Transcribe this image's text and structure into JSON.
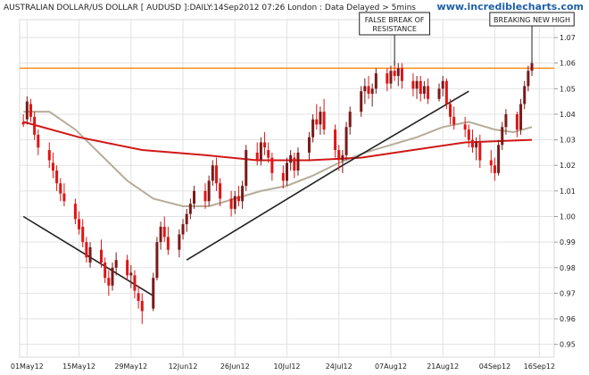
{
  "header": {
    "title": "AUSTRALIAN DOLLAR/US DOLLAR [ AUDUSD ]:DAILY:14Sep2012 07:26 London : Data Delayed > 5mins",
    "brand": "www.incrediblecharts.com"
  },
  "chart_data": {
    "type": "candlestick",
    "x_tick_labels": [
      "01May12",
      "15May12",
      "29May12",
      "12Jun12",
      "26Jun12",
      "10Jul12",
      "24Jul12",
      "07Aug12",
      "21Aug12",
      "04Sep12",
      "16Sep12"
    ],
    "x_tick_dates": [
      "2012-05-01",
      "2012-05-15",
      "2012-05-29",
      "2012-06-12",
      "2012-06-26",
      "2012-07-10",
      "2012-07-24",
      "2012-08-07",
      "2012-08-21",
      "2012-09-04",
      "2012-09-16"
    ],
    "y_ticks": [
      0.95,
      0.96,
      0.97,
      0.98,
      0.99,
      1.0,
      1.01,
      1.02,
      1.03,
      1.04,
      1.05,
      1.06,
      1.07
    ],
    "ylim": [
      0.945,
      1.077
    ],
    "xlim": [
      "2012-04-29",
      "2012-09-20"
    ],
    "resistance_level": 1.058,
    "colors": {
      "up": "#7a1a1a",
      "down": "#e01515",
      "resistance": "#ff8c1a",
      "ma_long": "#d01818",
      "ma_mid": "#b5ad98",
      "trendline": "#222222"
    },
    "annotations": [
      {
        "text": [
          "FALSE BREAK OF",
          "RESISTANCE"
        ],
        "date": "2012-08-08",
        "value": 1.059
      },
      {
        "text": [
          "BREAKING NEW HIGH"
        ],
        "date": "2012-09-14",
        "value": 1.06
      }
    ],
    "trendlines": [
      {
        "points": [
          [
            "2012-04-30",
            1.0
          ],
          [
            "2012-06-04",
            0.969
          ]
        ]
      },
      {
        "points": [
          [
            "2012-06-13",
            0.983
          ],
          [
            "2012-07-25",
            1.02
          ],
          [
            "2012-08-28",
            1.049
          ]
        ]
      }
    ],
    "ma_long": [
      [
        "2012-04-30",
        1.037
      ],
      [
        "2012-05-15",
        1.031
      ],
      [
        "2012-06-01",
        1.026
      ],
      [
        "2012-06-18",
        1.024
      ],
      [
        "2012-07-02",
        1.022
      ],
      [
        "2012-07-16",
        1.022
      ],
      [
        "2012-07-30",
        1.023
      ],
      [
        "2012-08-13",
        1.026
      ],
      [
        "2012-08-27",
        1.029
      ],
      [
        "2012-09-14",
        1.03
      ]
    ],
    "ma_mid": [
      [
        "2012-04-30",
        1.041
      ],
      [
        "2012-05-07",
        1.041
      ],
      [
        "2012-05-14",
        1.034
      ],
      [
        "2012-05-21",
        1.024
      ],
      [
        "2012-05-28",
        1.014
      ],
      [
        "2012-06-04",
        1.007
      ],
      [
        "2012-06-12",
        1.004
      ],
      [
        "2012-06-19",
        1.004
      ],
      [
        "2012-06-26",
        1.007
      ],
      [
        "2012-07-03",
        1.01
      ],
      [
        "2012-07-10",
        1.012
      ],
      [
        "2012-07-17",
        1.016
      ],
      [
        "2012-07-24",
        1.021
      ],
      [
        "2012-07-31",
        1.025
      ],
      [
        "2012-08-07",
        1.028
      ],
      [
        "2012-08-14",
        1.031
      ],
      [
        "2012-08-21",
        1.035
      ],
      [
        "2012-08-28",
        1.037
      ],
      [
        "2012-09-04",
        1.034
      ],
      [
        "2012-09-09",
        1.033
      ],
      [
        "2012-09-14",
        1.035
      ]
    ],
    "candles": [
      {
        "date": "2012-04-30",
        "open": 1.037,
        "high": 1.04,
        "low": 1.035,
        "close": 1.036
      },
      {
        "date": "2012-05-01",
        "open": 1.038,
        "high": 1.047,
        "low": 1.036,
        "close": 1.045
      },
      {
        "date": "2012-05-02",
        "open": 1.044,
        "high": 1.046,
        "low": 1.037,
        "close": 1.039
      },
      {
        "date": "2012-05-03",
        "open": 1.039,
        "high": 1.041,
        "low": 1.03,
        "close": 1.032
      },
      {
        "date": "2012-05-04",
        "open": 1.032,
        "high": 1.034,
        "low": 1.024,
        "close": 1.027
      },
      {
        "date": "2012-05-07",
        "open": 1.026,
        "high": 1.029,
        "low": 1.019,
        "close": 1.022
      },
      {
        "date": "2012-05-08",
        "open": 1.021,
        "high": 1.025,
        "low": 1.015,
        "close": 1.018
      },
      {
        "date": "2012-05-09",
        "open": 1.018,
        "high": 1.02,
        "low": 1.01,
        "close": 1.013
      },
      {
        "date": "2012-05-10",
        "open": 1.013,
        "high": 1.015,
        "low": 1.006,
        "close": 1.009
      },
      {
        "date": "2012-05-11",
        "open": 1.009,
        "high": 1.013,
        "low": 1.004,
        "close": 1.006
      },
      {
        "date": "2012-05-14",
        "open": 1.005,
        "high": 1.007,
        "low": 0.997,
        "close": 0.999
      },
      {
        "date": "2012-05-15",
        "open": 0.999,
        "high": 1.002,
        "low": 0.993,
        "close": 0.995
      },
      {
        "date": "2012-05-16",
        "open": 0.996,
        "high": 0.999,
        "low": 0.988,
        "close": 0.99
      },
      {
        "date": "2012-05-17",
        "open": 0.99,
        "high": 0.992,
        "low": 0.982,
        "close": 0.984
      },
      {
        "date": "2012-05-18",
        "open": 0.982,
        "high": 0.99,
        "low": 0.98,
        "close": 0.988
      },
      {
        "date": "2012-05-21",
        "open": 0.987,
        "high": 0.991,
        "low": 0.98,
        "close": 0.982
      },
      {
        "date": "2012-05-22",
        "open": 0.982,
        "high": 0.984,
        "low": 0.974,
        "close": 0.976
      },
      {
        "date": "2012-05-23",
        "open": 0.976,
        "high": 0.979,
        "low": 0.969,
        "close": 0.973
      },
      {
        "date": "2012-05-24",
        "open": 0.973,
        "high": 0.982,
        "low": 0.971,
        "close": 0.98
      },
      {
        "date": "2012-05-25",
        "open": 0.98,
        "high": 0.986,
        "low": 0.977,
        "close": 0.983
      },
      {
        "date": "2012-05-28",
        "open": 0.983,
        "high": 0.985,
        "low": 0.975,
        "close": 0.977
      },
      {
        "date": "2012-05-29",
        "open": 0.977,
        "high": 0.981,
        "low": 0.972,
        "close": 0.978
      },
      {
        "date": "2012-05-30",
        "open": 0.977,
        "high": 0.979,
        "low": 0.968,
        "close": 0.971
      },
      {
        "date": "2012-05-31",
        "open": 0.97,
        "high": 0.973,
        "low": 0.964,
        "close": 0.967
      },
      {
        "date": "2012-06-01",
        "open": 0.967,
        "high": 0.97,
        "low": 0.958,
        "close": 0.963
      },
      {
        "date": "2012-06-04",
        "open": 0.964,
        "high": 0.978,
        "low": 0.963,
        "close": 0.976
      },
      {
        "date": "2012-06-05",
        "open": 0.976,
        "high": 0.992,
        "low": 0.975,
        "close": 0.99
      },
      {
        "date": "2012-06-06",
        "open": 0.99,
        "high": 0.998,
        "low": 0.987,
        "close": 0.996
      },
      {
        "date": "2012-06-07",
        "open": 0.996,
        "high": 1.0,
        "low": 0.99,
        "close": 0.992
      },
      {
        "date": "2012-06-08",
        "open": 0.992,
        "high": 0.996,
        "low": 0.985,
        "close": 0.987
      },
      {
        "date": "2012-06-11",
        "open": 0.987,
        "high": 0.995,
        "low": 0.984,
        "close": 0.993
      },
      {
        "date": "2012-06-12",
        "open": 0.993,
        "high": 0.999,
        "low": 0.991,
        "close": 0.997
      },
      {
        "date": "2012-06-13",
        "open": 0.997,
        "high": 1.003,
        "low": 0.994,
        "close": 1.001
      },
      {
        "date": "2012-06-14",
        "open": 1.001,
        "high": 1.007,
        "low": 0.999,
        "close": 1.005
      },
      {
        "date": "2012-06-15",
        "open": 1.005,
        "high": 1.012,
        "low": 1.003,
        "close": 1.01
      },
      {
        "date": "2012-06-18",
        "open": 1.01,
        "high": 1.013,
        "low": 1.003,
        "close": 1.006
      },
      {
        "date": "2012-06-19",
        "open": 1.006,
        "high": 1.016,
        "low": 1.004,
        "close": 1.014
      },
      {
        "date": "2012-06-20",
        "open": 1.014,
        "high": 1.022,
        "low": 1.012,
        "close": 1.02
      },
      {
        "date": "2012-06-21",
        "open": 1.02,
        "high": 1.023,
        "low": 1.01,
        "close": 1.013
      },
      {
        "date": "2012-06-22",
        "open": 1.013,
        "high": 1.015,
        "low": 1.004,
        "close": 1.007
      },
      {
        "date": "2012-06-25",
        "open": 1.007,
        "high": 1.01,
        "low": 1.0,
        "close": 1.003
      },
      {
        "date": "2012-06-26",
        "open": 1.003,
        "high": 1.01,
        "low": 1.001,
        "close": 1.008
      },
      {
        "date": "2012-06-27",
        "open": 1.008,
        "high": 1.012,
        "low": 1.004,
        "close": 1.006
      },
      {
        "date": "2012-06-28",
        "open": 1.006,
        "high": 1.014,
        "low": 1.003,
        "close": 1.012
      },
      {
        "date": "2012-06-29",
        "open": 1.012,
        "high": 1.028,
        "low": 1.01,
        "close": 1.026
      },
      {
        "date": "2012-07-02",
        "open": 1.025,
        "high": 1.029,
        "low": 1.02,
        "close": 1.022
      },
      {
        "date": "2012-07-03",
        "open": 1.022,
        "high": 1.031,
        "low": 1.02,
        "close": 1.029
      },
      {
        "date": "2012-07-04",
        "open": 1.029,
        "high": 1.033,
        "low": 1.024,
        "close": 1.027
      },
      {
        "date": "2012-07-05",
        "open": 1.026,
        "high": 1.029,
        "low": 1.021,
        "close": 1.023
      },
      {
        "date": "2012-07-06",
        "open": 1.023,
        "high": 1.025,
        "low": 1.014,
        "close": 1.017
      },
      {
        "date": "2012-07-09",
        "open": 1.017,
        "high": 1.02,
        "low": 1.011,
        "close": 1.014
      },
      {
        "date": "2012-07-10",
        "open": 1.014,
        "high": 1.023,
        "low": 1.012,
        "close": 1.021
      },
      {
        "date": "2012-07-11",
        "open": 1.021,
        "high": 1.026,
        "low": 1.018,
        "close": 1.024
      },
      {
        "date": "2012-07-12",
        "open": 1.023,
        "high": 1.025,
        "low": 1.015,
        "close": 1.018
      },
      {
        "date": "2012-07-13",
        "open": 1.018,
        "high": 1.027,
        "low": 1.016,
        "close": 1.025
      },
      {
        "date": "2012-07-16",
        "open": 1.025,
        "high": 1.033,
        "low": 1.022,
        "close": 1.031
      },
      {
        "date": "2012-07-17",
        "open": 1.031,
        "high": 1.04,
        "low": 1.029,
        "close": 1.038
      },
      {
        "date": "2012-07-18",
        "open": 1.038,
        "high": 1.044,
        "low": 1.034,
        "close": 1.036
      },
      {
        "date": "2012-07-19",
        "open": 1.036,
        "high": 1.043,
        "low": 1.032,
        "close": 1.041
      },
      {
        "date": "2012-07-20",
        "open": 1.041,
        "high": 1.046,
        "low": 1.032,
        "close": 1.034
      },
      {
        "date": "2012-07-23",
        "open": 1.034,
        "high": 1.036,
        "low": 1.023,
        "close": 1.026
      },
      {
        "date": "2012-07-24",
        "open": 1.026,
        "high": 1.028,
        "low": 1.018,
        "close": 1.022
      },
      {
        "date": "2012-07-25",
        "open": 1.022,
        "high": 1.026,
        "low": 1.017,
        "close": 1.024
      },
      {
        "date": "2012-07-26",
        "open": 1.024,
        "high": 1.037,
        "low": 1.022,
        "close": 1.035
      },
      {
        "date": "2012-07-27",
        "open": 1.035,
        "high": 1.043,
        "low": 1.032,
        "close": 1.041
      },
      {
        "date": "2012-07-30",
        "open": 1.041,
        "high": 1.051,
        "low": 1.039,
        "close": 1.049
      },
      {
        "date": "2012-07-31",
        "open": 1.049,
        "high": 1.054,
        "low": 1.044,
        "close": 1.051
      },
      {
        "date": "2012-08-01",
        "open": 1.051,
        "high": 1.055,
        "low": 1.046,
        "close": 1.048
      },
      {
        "date": "2012-08-02",
        "open": 1.048,
        "high": 1.052,
        "low": 1.043,
        "close": 1.05
      },
      {
        "date": "2012-08-03",
        "open": 1.05,
        "high": 1.058,
        "low": 1.048,
        "close": 1.056
      },
      {
        "date": "2012-08-06",
        "open": 1.056,
        "high": 1.058,
        "low": 1.049,
        "close": 1.052
      },
      {
        "date": "2012-08-07",
        "open": 1.052,
        "high": 1.059,
        "low": 1.05,
        "close": 1.057
      },
      {
        "date": "2012-08-08",
        "open": 1.057,
        "high": 1.061,
        "low": 1.053,
        "close": 1.055
      },
      {
        "date": "2012-08-09",
        "open": 1.055,
        "high": 1.06,
        "low": 1.051,
        "close": 1.058
      },
      {
        "date": "2012-08-10",
        "open": 1.058,
        "high": 1.06,
        "low": 1.05,
        "close": 1.053
      },
      {
        "date": "2012-08-13",
        "open": 1.053,
        "high": 1.056,
        "low": 1.047,
        "close": 1.05
      },
      {
        "date": "2012-08-14",
        "open": 1.05,
        "high": 1.055,
        "low": 1.046,
        "close": 1.053
      },
      {
        "date": "2012-08-15",
        "open": 1.053,
        "high": 1.055,
        "low": 1.045,
        "close": 1.048
      },
      {
        "date": "2012-08-16",
        "open": 1.048,
        "high": 1.053,
        "low": 1.046,
        "close": 1.051
      },
      {
        "date": "2012-08-17",
        "open": 1.051,
        "high": 1.054,
        "low": 1.044,
        "close": 1.046
      },
      {
        "date": "2012-08-20",
        "open": 1.046,
        "high": 1.052,
        "low": 1.045,
        "close": 1.05
      },
      {
        "date": "2012-08-21",
        "open": 1.05,
        "high": 1.055,
        "low": 1.047,
        "close": 1.053
      },
      {
        "date": "2012-08-22",
        "open": 1.053,
        "high": 1.054,
        "low": 1.042,
        "close": 1.044
      },
      {
        "date": "2012-08-23",
        "open": 1.044,
        "high": 1.046,
        "low": 1.036,
        "close": 1.039
      },
      {
        "date": "2012-08-24",
        "open": 1.039,
        "high": 1.043,
        "low": 1.034,
        "close": 1.036
      },
      {
        "date": "2012-08-27",
        "open": 1.036,
        "high": 1.039,
        "low": 1.031,
        "close": 1.034
      },
      {
        "date": "2012-08-28",
        "open": 1.034,
        "high": 1.036,
        "low": 1.027,
        "close": 1.03
      },
      {
        "date": "2012-08-29",
        "open": 1.03,
        "high": 1.034,
        "low": 1.025,
        "close": 1.027
      },
      {
        "date": "2012-08-30",
        "open": 1.027,
        "high": 1.031,
        "low": 1.022,
        "close": 1.029
      },
      {
        "date": "2012-08-31",
        "open": 1.029,
        "high": 1.032,
        "low": 1.019,
        "close": 1.022
      },
      {
        "date": "2012-09-03",
        "open": 1.022,
        "high": 1.026,
        "low": 1.017,
        "close": 1.02
      },
      {
        "date": "2012-09-04",
        "open": 1.02,
        "high": 1.023,
        "low": 1.014,
        "close": 1.017
      },
      {
        "date": "2012-09-05",
        "open": 1.017,
        "high": 1.03,
        "low": 1.016,
        "close": 1.028
      },
      {
        "date": "2012-09-06",
        "open": 1.028,
        "high": 1.037,
        "low": 1.026,
        "close": 1.035
      },
      {
        "date": "2012-09-07",
        "open": 1.035,
        "high": 1.042,
        "low": 1.032,
        "close": 1.04
      },
      {
        "date": "2012-09-10",
        "open": 1.04,
        "high": 1.041,
        "low": 1.031,
        "close": 1.034
      },
      {
        "date": "2012-09-11",
        "open": 1.034,
        "high": 1.046,
        "low": 1.032,
        "close": 1.044
      },
      {
        "date": "2012-09-12",
        "open": 1.044,
        "high": 1.053,
        "low": 1.042,
        "close": 1.051
      },
      {
        "date": "2012-09-13",
        "open": 1.051,
        "high": 1.059,
        "low": 1.049,
        "close": 1.057
      },
      {
        "date": "2012-09-14",
        "open": 1.057,
        "high": 1.062,
        "low": 1.055,
        "close": 1.06
      }
    ]
  }
}
